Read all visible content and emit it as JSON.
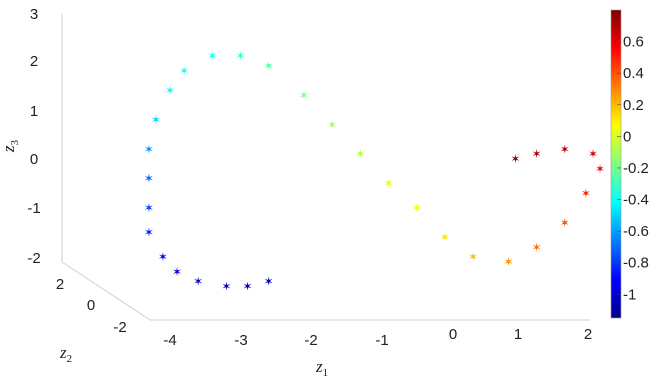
{
  "chart_data": {
    "type": "scatter",
    "projection": "3d",
    "title": "",
    "axes": {
      "z1": {
        "label": "z",
        "label_sub": "1",
        "ticks": [
          "-4",
          "-3",
          "-2",
          "-1",
          "0",
          "1",
          "2"
        ],
        "range": [
          -4,
          2
        ]
      },
      "z2": {
        "label": "z",
        "label_sub": "2",
        "ticks": [
          "2",
          "0",
          "-2"
        ],
        "range": [
          -2,
          2
        ]
      },
      "z3": {
        "label": "z",
        "label_sub": "3",
        "ticks": [
          "3",
          "2",
          "1",
          "0",
          "-1",
          "-2"
        ],
        "range": [
          -2,
          3
        ]
      }
    },
    "colorbar": {
      "ticks": [
        "0.6",
        "0.4",
        "0.2",
        "0",
        "-0.2",
        "-0.4",
        "-0.6",
        "-0.8",
        "-1"
      ],
      "range": [
        -1.15,
        0.8
      ],
      "colormap": "jet"
    },
    "grid": false,
    "marker": "star",
    "points_note": "curve from bottom-left (blue, low values) up around top-left (cyan), across middle (green/yellow) to right (orange/red, high values)",
    "points": [
      {
        "z1": -2.6,
        "z2": 0.5,
        "z3": -2.4,
        "c": -1.05
      },
      {
        "z1": -2.9,
        "z2": 0.5,
        "z3": -2.5,
        "c": -1.05
      },
      {
        "z1": -3.2,
        "z2": 0.5,
        "z3": -2.5,
        "c": -1.04
      },
      {
        "z1": -3.6,
        "z2": 0.5,
        "z3": -2.4,
        "c": -1.02
      },
      {
        "z1": -3.9,
        "z2": 0.5,
        "z3": -2.2,
        "c": -0.98
      },
      {
        "z1": -4.1,
        "z2": 0.5,
        "z3": -1.9,
        "c": -0.92
      },
      {
        "z1": -4.3,
        "z2": 0.5,
        "z3": -1.4,
        "c": -0.86
      },
      {
        "z1": -4.3,
        "z2": 0.5,
        "z3": -0.9,
        "c": -0.8
      },
      {
        "z1": -4.3,
        "z2": 0.5,
        "z3": -0.3,
        "c": -0.72
      },
      {
        "z1": -4.3,
        "z2": 0.5,
        "z3": 0.3,
        "c": -0.62
      },
      {
        "z1": -4.2,
        "z2": 0.5,
        "z3": 0.9,
        "c": -0.5
      },
      {
        "z1": -4.0,
        "z2": 0.5,
        "z3": 1.5,
        "c": -0.42
      },
      {
        "z1": -3.8,
        "z2": 0.5,
        "z3": 1.9,
        "c": -0.38
      },
      {
        "z1": -3.4,
        "z2": 0.5,
        "z3": 2.2,
        "c": -0.35
      },
      {
        "z1": -3.0,
        "z2": 0.5,
        "z3": 2.2,
        "c": -0.3
      },
      {
        "z1": -2.6,
        "z2": 0.5,
        "z3": 2.0,
        "c": -0.25
      },
      {
        "z1": -2.1,
        "z2": 0.5,
        "z3": 1.4,
        "c": -0.18
      },
      {
        "z1": -1.7,
        "z2": 0.5,
        "z3": 0.8,
        "c": -0.12
      },
      {
        "z1": -1.3,
        "z2": 0.5,
        "z3": 0.2,
        "c": -0.08
      },
      {
        "z1": -0.9,
        "z2": 0.5,
        "z3": -0.4,
        "c": 0.0
      },
      {
        "z1": -0.5,
        "z2": 0.5,
        "z3": -0.9,
        "c": 0.05
      },
      {
        "z1": -0.1,
        "z2": 0.5,
        "z3": -1.5,
        "c": 0.12
      },
      {
        "z1": 0.3,
        "z2": 0.5,
        "z3": -1.9,
        "c": 0.2
      },
      {
        "z1": 0.8,
        "z2": 0.5,
        "z3": -2.0,
        "c": 0.28
      },
      {
        "z1": 1.2,
        "z2": 0.5,
        "z3": -1.7,
        "c": 0.35
      },
      {
        "z1": 1.6,
        "z2": 0.5,
        "z3": -1.2,
        "c": 0.42
      },
      {
        "z1": 1.9,
        "z2": 0.5,
        "z3": -0.6,
        "c": 0.5
      },
      {
        "z1": 2.1,
        "z2": 0.5,
        "z3": -0.1,
        "c": 0.58
      },
      {
        "z1": 2.0,
        "z2": 0.5,
        "z3": 0.2,
        "c": 0.65
      },
      {
        "z1": 1.6,
        "z2": 0.5,
        "z3": 0.3,
        "c": 0.7
      },
      {
        "z1": 1.2,
        "z2": 0.5,
        "z3": 0.2,
        "c": 0.74
      },
      {
        "z1": 0.9,
        "z2": 0.5,
        "z3": 0.1,
        "c": 0.77
      }
    ]
  }
}
